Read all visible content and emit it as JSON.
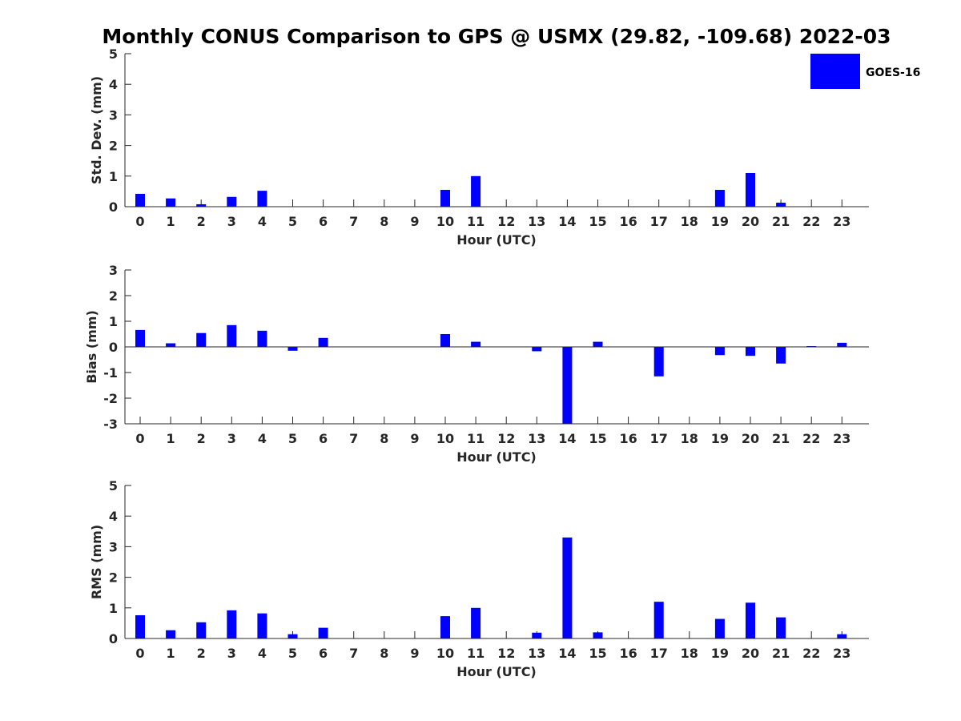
{
  "figure": {
    "title": "Monthly CONUS Comparison to GPS @ USMX (29.82, -109.68) 2022-03",
    "legend": "GOES-16",
    "bar_color": "#0000ff",
    "legend_placement": "top-right"
  },
  "chart_data": [
    {
      "type": "bar",
      "name": "std",
      "xlabel": "Hour (UTC)",
      "ylabel": "Std. Dev. (mm)",
      "categories": [
        "0",
        "1",
        "2",
        "3",
        "4",
        "5",
        "6",
        "7",
        "8",
        "9",
        "10",
        "11",
        "12",
        "13",
        "14",
        "15",
        "16",
        "17",
        "18",
        "19",
        "20",
        "21",
        "22",
        "23"
      ],
      "series": [
        {
          "name": "GOES-16",
          "values": [
            0.42,
            0.27,
            0.08,
            0.32,
            0.52,
            0,
            0,
            0,
            0,
            0,
            0.55,
            1.0,
            0,
            0,
            0,
            0,
            0,
            0,
            0,
            0.55,
            1.1,
            0.13,
            0,
            0
          ]
        }
      ],
      "ylim": [
        0,
        5
      ],
      "yticks": [
        0,
        1,
        2,
        3,
        4,
        5
      ]
    },
    {
      "type": "bar",
      "name": "bias",
      "xlabel": "Hour (UTC)",
      "ylabel": "Bias (mm)",
      "categories": [
        "0",
        "1",
        "2",
        "3",
        "4",
        "5",
        "6",
        "7",
        "8",
        "9",
        "10",
        "11",
        "12",
        "13",
        "14",
        "15",
        "16",
        "17",
        "18",
        "19",
        "20",
        "21",
        "22",
        "23"
      ],
      "series": [
        {
          "name": "GOES-16",
          "values": [
            0.66,
            0.14,
            0.54,
            0.85,
            0.63,
            -0.15,
            0.35,
            0,
            0,
            0,
            0.5,
            0.2,
            0,
            -0.17,
            -3.0,
            0.2,
            0,
            -1.15,
            0,
            -0.32,
            -0.35,
            -0.65,
            0.03,
            0.16
          ]
        }
      ],
      "ylim": [
        -3,
        3
      ],
      "yticks": [
        -3,
        -2,
        -1,
        0,
        1,
        2,
        3
      ]
    },
    {
      "type": "bar",
      "name": "rms",
      "xlabel": "Hour (UTC)",
      "ylabel": "RMS (mm)",
      "categories": [
        "0",
        "1",
        "2",
        "3",
        "4",
        "5",
        "6",
        "7",
        "8",
        "9",
        "10",
        "11",
        "12",
        "13",
        "14",
        "15",
        "16",
        "17",
        "18",
        "19",
        "20",
        "21",
        "22",
        "23"
      ],
      "series": [
        {
          "name": "GOES-16",
          "values": [
            0.76,
            0.27,
            0.53,
            0.92,
            0.82,
            0.14,
            0.35,
            0,
            0,
            0,
            0.73,
            1.0,
            0,
            0.19,
            3.3,
            0.2,
            0,
            1.2,
            0,
            0.64,
            1.17,
            0.69,
            0,
            0.14
          ]
        }
      ],
      "ylim": [
        0,
        5
      ],
      "yticks": [
        0,
        1,
        2,
        3,
        4,
        5
      ]
    }
  ]
}
